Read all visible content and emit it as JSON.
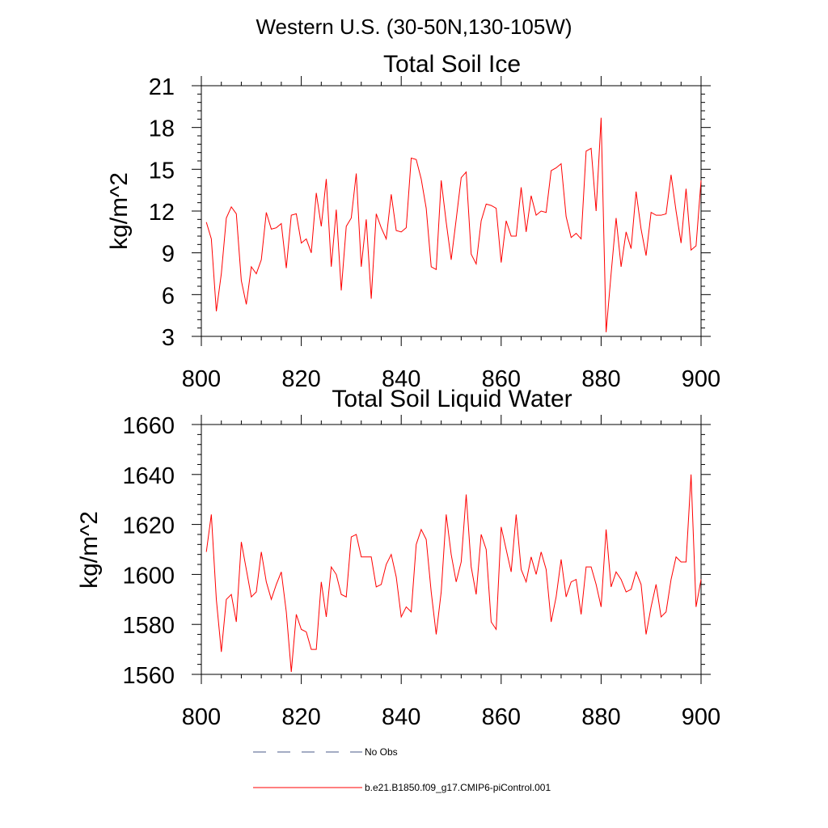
{
  "suptitle": "Western U.S. (30-50N,130-105W)",
  "series_color": "#ff0000",
  "obs_color": "#4a5a8a",
  "chart_data": [
    {
      "type": "line",
      "title": "Total Soil Ice",
      "ylabel": "kg/m^2",
      "xlabel": "",
      "xlim": [
        800,
        900
      ],
      "ylim": [
        3,
        21
      ],
      "xticks": [
        800,
        820,
        840,
        860,
        880,
        900
      ],
      "yticks": [
        3,
        6,
        9,
        12,
        15,
        18,
        21
      ],
      "x_start": 801,
      "x_step": 1,
      "series": [
        {
          "name": "b.e21.B1850.f09_g17.CMIP6-piControl.001",
          "values": [
            11.2,
            10.0,
            4.8,
            7.5,
            11.5,
            12.3,
            11.8,
            7.0,
            5.3,
            8.0,
            7.5,
            8.5,
            11.9,
            10.7,
            10.8,
            11.1,
            7.9,
            11.7,
            11.8,
            9.7,
            10.0,
            9.0,
            13.3,
            10.9,
            14.3,
            8.0,
            12.1,
            6.3,
            10.9,
            11.5,
            14.7,
            8.0,
            11.4,
            5.7,
            11.8,
            10.8,
            10.0,
            13.2,
            10.6,
            10.5,
            10.8,
            15.8,
            15.7,
            14.3,
            12.2,
            8.0,
            7.8,
            14.2,
            11.2,
            8.5,
            11.4,
            14.4,
            14.8,
            8.9,
            8.2,
            11.3,
            12.5,
            12.4,
            12.2,
            8.3,
            11.3,
            10.2,
            10.2,
            13.7,
            10.5,
            13.1,
            11.7,
            12.0,
            11.9,
            14.9,
            15.1,
            15.4,
            11.6,
            10.1,
            10.4,
            10.0,
            16.3,
            16.5,
            12.0,
            18.7,
            3.3,
            7.5,
            11.5,
            8.0,
            10.5,
            9.3,
            13.4,
            10.7,
            8.8,
            11.9,
            11.7,
            11.7,
            11.8,
            14.6,
            12.0,
            9.7,
            13.6,
            9.2,
            9.5,
            14.2
          ]
        }
      ]
    },
    {
      "type": "line",
      "title": "Total Soil Liquid Water",
      "ylabel": "kg/m^2",
      "xlabel": "",
      "xlim": [
        800,
        900
      ],
      "ylim": [
        1560,
        1660
      ],
      "xticks": [
        800,
        820,
        840,
        860,
        880,
        900
      ],
      "yticks": [
        1560,
        1580,
        1600,
        1620,
        1640,
        1660
      ],
      "x_start": 801,
      "x_step": 1,
      "series": [
        {
          "name": "b.e21.B1850.f09_g17.CMIP6-piControl.001",
          "values": [
            1609,
            1624,
            1590,
            1569,
            1590,
            1592,
            1581,
            1613,
            1602,
            1591,
            1593,
            1609,
            1597,
            1590,
            1596,
            1601,
            1585,
            1561,
            1584,
            1578,
            1577,
            1570,
            1570,
            1597,
            1583,
            1603,
            1600,
            1592,
            1591,
            1615,
            1616,
            1607,
            1607,
            1607,
            1595,
            1596,
            1604,
            1608,
            1599,
            1583,
            1587,
            1585,
            1612,
            1618,
            1614,
            1593,
            1576,
            1593,
            1624,
            1608,
            1597,
            1605,
            1632,
            1603,
            1592,
            1616,
            1610,
            1581,
            1578,
            1619,
            1610,
            1601,
            1624,
            1602,
            1597,
            1607,
            1600,
            1609,
            1602,
            1581,
            1591,
            1606,
            1591,
            1597,
            1598,
            1584,
            1603,
            1603,
            1596,
            1587,
            1618,
            1595,
            1601,
            1598,
            1593,
            1594,
            1601,
            1596,
            1576,
            1587,
            1596,
            1583,
            1585,
            1598,
            1607,
            1605,
            1605,
            1640,
            1587,
            1598
          ]
        }
      ]
    }
  ],
  "legend": [
    {
      "label": "No Obs",
      "style": "dashed",
      "color": "#4a5a8a"
    },
    {
      "label": "b.e21.B1850.f09_g17.CMIP6-piControl.001",
      "style": "solid",
      "color": "#ff0000"
    }
  ]
}
